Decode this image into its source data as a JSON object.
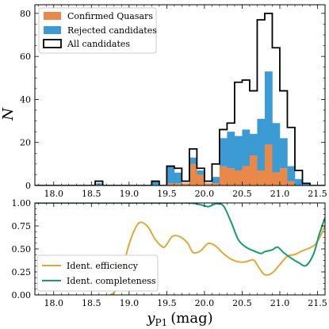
{
  "chart_data": [
    {
      "type": "histogram",
      "ylabel": "N",
      "xlim": [
        17.75,
        21.6
      ],
      "ylim": [
        0,
        84
      ],
      "xticks": [
        18.0,
        18.5,
        19.0,
        19.5,
        20.0,
        20.5,
        21.0,
        21.5
      ],
      "xtick_labels": [
        "18.0",
        "18.5",
        "19.0",
        "19.5",
        "20.0",
        "20.5",
        "21.0",
        "21.5"
      ],
      "yticks": [
        0,
        20,
        40,
        60,
        80
      ],
      "ytick_labels": [
        "0",
        "20",
        "40",
        "60",
        "80"
      ],
      "bin_edges": [
        17.75,
        17.8,
        17.85,
        17.9,
        17.95,
        18.0,
        18.05,
        18.1,
        18.15,
        18.2,
        18.25,
        18.3,
        18.35,
        18.4,
        18.45,
        18.5,
        18.55,
        18.6,
        18.65,
        18.7,
        18.75,
        18.8,
        18.85,
        18.9,
        18.95,
        19.0,
        19.05,
        19.1,
        19.15,
        19.2,
        19.25,
        19.3,
        19.35,
        19.4,
        19.45,
        19.5,
        19.55,
        19.6,
        19.65,
        19.7,
        19.75,
        19.8,
        19.85,
        19.9,
        19.95,
        20.0,
        20.05,
        20.1,
        20.15,
        20.2,
        20.25,
        20.3,
        20.35,
        20.4,
        20.45,
        20.5,
        20.55,
        20.6,
        20.65,
        20.7,
        20.75,
        20.8,
        20.85,
        20.9,
        20.95,
        21.0,
        21.05,
        21.1,
        21.15,
        21.2,
        21.25,
        21.3,
        21.35,
        21.4,
        21.45,
        21.5,
        21.55,
        21.6
      ],
      "legend_position": "upper left",
      "series": [
        {
          "name": "Confirmed Quasars",
          "style": "filled",
          "color": "#e8894a",
          "counts": [
            0,
            0,
            0,
            0,
            0,
            0,
            0,
            0,
            0,
            0,
            0,
            0,
            0,
            0,
            0,
            0,
            0,
            0,
            0,
            0,
            0,
            0,
            0,
            0,
            0,
            0,
            0,
            0,
            0,
            0,
            0,
            0,
            0,
            0,
            0,
            1,
            1,
            1,
            1,
            1,
            1,
            10,
            10,
            5,
            5,
            1,
            1,
            1,
            1,
            9,
            9,
            8,
            8,
            7,
            7,
            9,
            9,
            14,
            14,
            7,
            7,
            19,
            19,
            6,
            6,
            8,
            8,
            2,
            2,
            0,
            0,
            0,
            0,
            0,
            0,
            0,
            0
          ]
        },
        {
          "name": "Rejected candidates",
          "style": "filled",
          "color": "#3d9bd4",
          "counts": [
            0,
            0,
            0,
            0,
            0,
            0,
            0,
            0,
            0,
            0,
            0,
            0,
            0,
            0,
            0,
            0,
            1,
            1,
            0,
            0,
            0,
            0,
            0,
            0,
            0,
            0,
            0,
            0,
            0,
            0,
            0,
            2,
            2,
            0,
            0,
            8,
            8,
            5,
            5,
            0,
            0,
            3,
            3,
            2,
            2,
            0,
            0,
            3,
            3,
            13,
            13,
            17,
            17,
            16,
            16,
            17,
            17,
            10,
            10,
            24,
            24,
            34,
            34,
            23,
            23,
            14,
            14,
            7,
            7,
            3,
            3,
            1,
            1,
            0,
            0,
            0,
            0
          ]
        },
        {
          "name": "All candidates",
          "style": "step",
          "color": "#000000",
          "counts": [
            0,
            0,
            0,
            0,
            0,
            0,
            0,
            0,
            0,
            0,
            0,
            0,
            0,
            0,
            0,
            0,
            2,
            2,
            0,
            0,
            0,
            0,
            0,
            0,
            0,
            0,
            0,
            0,
            0,
            0,
            0,
            2,
            2,
            0,
            0,
            9,
            9,
            8,
            8,
            2,
            2,
            17,
            17,
            8,
            8,
            2,
            2,
            10,
            10,
            26,
            26,
            29,
            29,
            48,
            48,
            49,
            49,
            44,
            44,
            77,
            77,
            80,
            80,
            64,
            64,
            44,
            44,
            27,
            27,
            7,
            7,
            1,
            1,
            0,
            0,
            0,
            0
          ]
        }
      ]
    },
    {
      "type": "line",
      "xlabel": "y",
      "xlabel_sub": "P1",
      "xlabel_unit": "(mag)",
      "xlim": [
        17.75,
        21.6
      ],
      "ylim": [
        0.0,
        1.0
      ],
      "xticks": [
        18.0,
        18.5,
        19.0,
        19.5,
        20.0,
        20.5,
        21.0,
        21.5
      ],
      "xtick_labels": [
        "18.0",
        "18.5",
        "19.0",
        "19.5",
        "20.0",
        "20.5",
        "21.0",
        "21.5"
      ],
      "yticks": [
        0.0,
        0.25,
        0.5,
        0.75,
        1.0
      ],
      "ytick_labels": [
        "0.00",
        "0.25",
        "0.50",
        "0.75",
        "1.00"
      ],
      "legend_position": "lower left",
      "series": [
        {
          "name": "Ident. efficiency",
          "color": "#e0a838",
          "x": [
            18.75,
            18.82,
            18.9,
            19.0,
            19.08,
            19.15,
            19.25,
            19.35,
            19.45,
            19.5,
            19.58,
            19.68,
            19.78,
            19.85,
            19.95,
            20.05,
            20.15,
            20.25,
            20.35,
            20.45,
            20.55,
            20.65,
            20.72,
            20.8,
            20.9,
            21.0,
            21.1,
            21.2,
            21.3,
            21.42,
            21.5,
            21.6
          ],
          "y": [
            0.0,
            0.05,
            0.25,
            0.55,
            0.72,
            0.79,
            0.74,
            0.6,
            0.52,
            0.55,
            0.64,
            0.63,
            0.56,
            0.46,
            0.48,
            0.56,
            0.53,
            0.45,
            0.39,
            0.36,
            0.36,
            0.38,
            0.3,
            0.22,
            0.24,
            0.33,
            0.42,
            0.44,
            0.48,
            0.52,
            0.58,
            0.75
          ]
        },
        {
          "name": "Ident. completeness",
          "color": "#149b74",
          "x": [
            17.75,
            18.0,
            18.5,
            19.0,
            19.5,
            19.8,
            19.95,
            20.05,
            20.15,
            20.25,
            20.35,
            20.45,
            20.55,
            20.65,
            20.75,
            20.8,
            20.9,
            20.97,
            21.05,
            21.15,
            21.25,
            21.35,
            21.45,
            21.52,
            21.6
          ],
          "y": [
            1.0,
            1.0,
            1.0,
            1.0,
            1.0,
            1.0,
            0.98,
            0.96,
            0.99,
            0.97,
            0.8,
            0.6,
            0.52,
            0.48,
            0.45,
            0.47,
            0.49,
            0.52,
            0.46,
            0.4,
            0.35,
            0.32,
            0.45,
            0.65,
            0.84
          ]
        }
      ]
    }
  ]
}
